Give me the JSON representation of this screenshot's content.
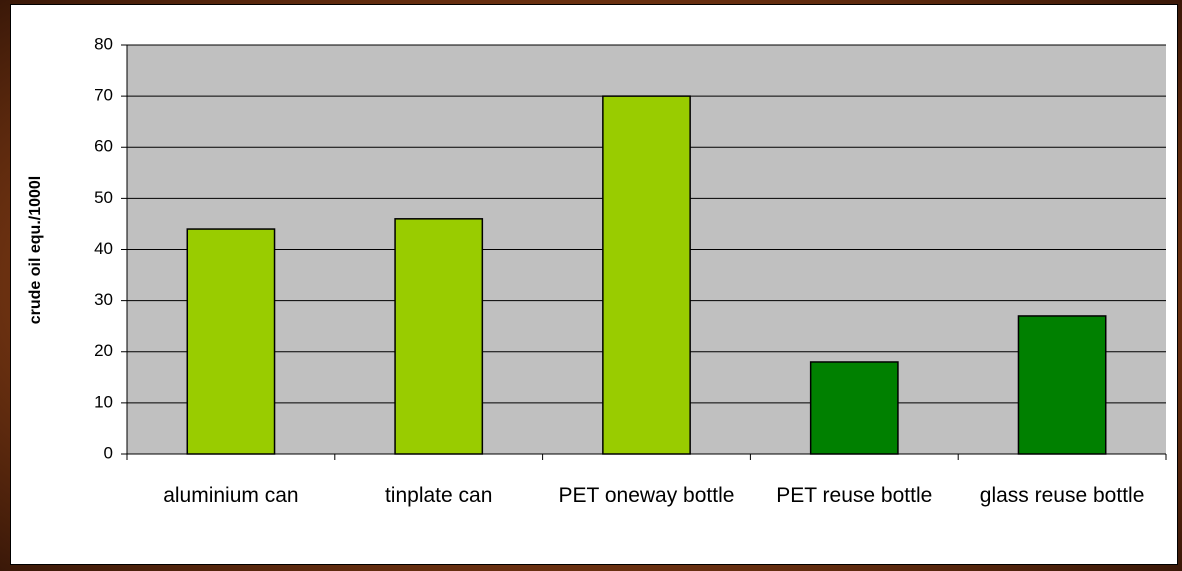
{
  "chart_data": {
    "type": "bar",
    "y_label": "crude oil equ./1000l",
    "categories": [
      "aluminium can",
      "tinplate can",
      "PET oneway bottle",
      "PET reuse bottle",
      "glass reuse bottle"
    ],
    "values": [
      44,
      46,
      70,
      18,
      27
    ],
    "colors": [
      "#99cc00",
      "#99cc00",
      "#99cc00",
      "#008000",
      "#008000"
    ],
    "ylim": [
      0,
      80
    ],
    "yticks": [
      0,
      10,
      20,
      30,
      40,
      50,
      60,
      70,
      80
    ],
    "grid": true
  }
}
